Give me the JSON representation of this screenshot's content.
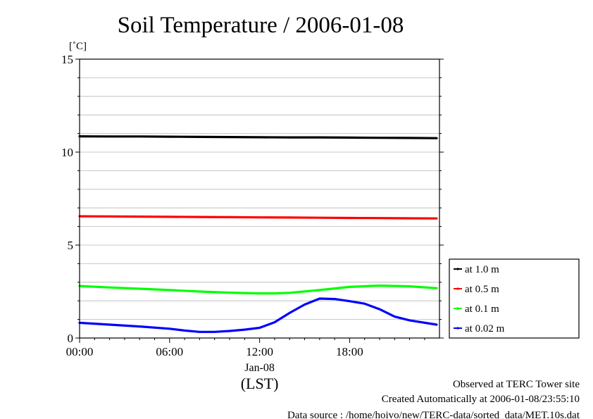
{
  "chart_data": {
    "type": "line",
    "title": "Soil Temperature / 2006-01-08",
    "ylabel": "[˚C]",
    "xlabel": "(LST)",
    "xlim": [
      0,
      23.99
    ],
    "ylim": [
      0,
      15
    ],
    "yticks": [
      0,
      5,
      10,
      15
    ],
    "yminor_step": 1,
    "xticks": [
      {
        "value": 0,
        "label": "00:00"
      },
      {
        "value": 6,
        "label": "06:00"
      },
      {
        "value": 12,
        "label": "12:00"
      },
      {
        "value": 18,
        "label": "18:00"
      }
    ],
    "x_sublabel": {
      "value": 12,
      "label": "Jan-08"
    },
    "grid": true,
    "legend_position": "right",
    "series": [
      {
        "name": "at 1.0 m",
        "color": "#000000",
        "x": [
          0,
          2,
          4,
          6,
          8,
          10,
          12,
          14,
          16,
          18,
          20,
          22,
          23.8
        ],
        "y": [
          10.85,
          10.84,
          10.84,
          10.83,
          10.82,
          10.81,
          10.8,
          10.79,
          10.79,
          10.78,
          10.77,
          10.76,
          10.75
        ]
      },
      {
        "name": "at 0.5 m",
        "color": "#ff0000",
        "x": [
          0,
          2,
          4,
          6,
          8,
          10,
          12,
          14,
          16,
          18,
          20,
          22,
          23.8
        ],
        "y": [
          6.55,
          6.54,
          6.53,
          6.52,
          6.51,
          6.5,
          6.49,
          6.48,
          6.47,
          6.46,
          6.45,
          6.44,
          6.43
        ]
      },
      {
        "name": "at 0.1 m",
        "color": "#00ff00",
        "x": [
          0,
          2,
          4,
          6,
          8,
          10,
          12,
          13,
          14,
          16,
          18,
          20,
          22,
          23.8
        ],
        "y": [
          2.8,
          2.72,
          2.65,
          2.58,
          2.5,
          2.44,
          2.4,
          2.4,
          2.43,
          2.58,
          2.75,
          2.82,
          2.78,
          2.68
        ]
      },
      {
        "name": "at 0.02 m",
        "color": "#0000ff",
        "x": [
          0,
          2,
          4,
          6,
          7,
          8,
          9,
          10,
          11,
          12,
          13,
          14,
          15,
          16,
          17,
          18,
          19,
          20,
          21,
          22,
          23.8
        ],
        "y": [
          0.82,
          0.72,
          0.62,
          0.5,
          0.4,
          0.33,
          0.33,
          0.38,
          0.45,
          0.55,
          0.85,
          1.35,
          1.8,
          2.12,
          2.1,
          1.98,
          1.85,
          1.55,
          1.15,
          0.95,
          0.72
        ]
      }
    ]
  },
  "footer": {
    "line1": "Observed at TERC Tower site",
    "line2": "Created Automatically at 2006-01-08/23:55:10",
    "line3": "Data source : /home/hoivo/new/TERC-data/sorted_data/MET.10s.dat"
  }
}
